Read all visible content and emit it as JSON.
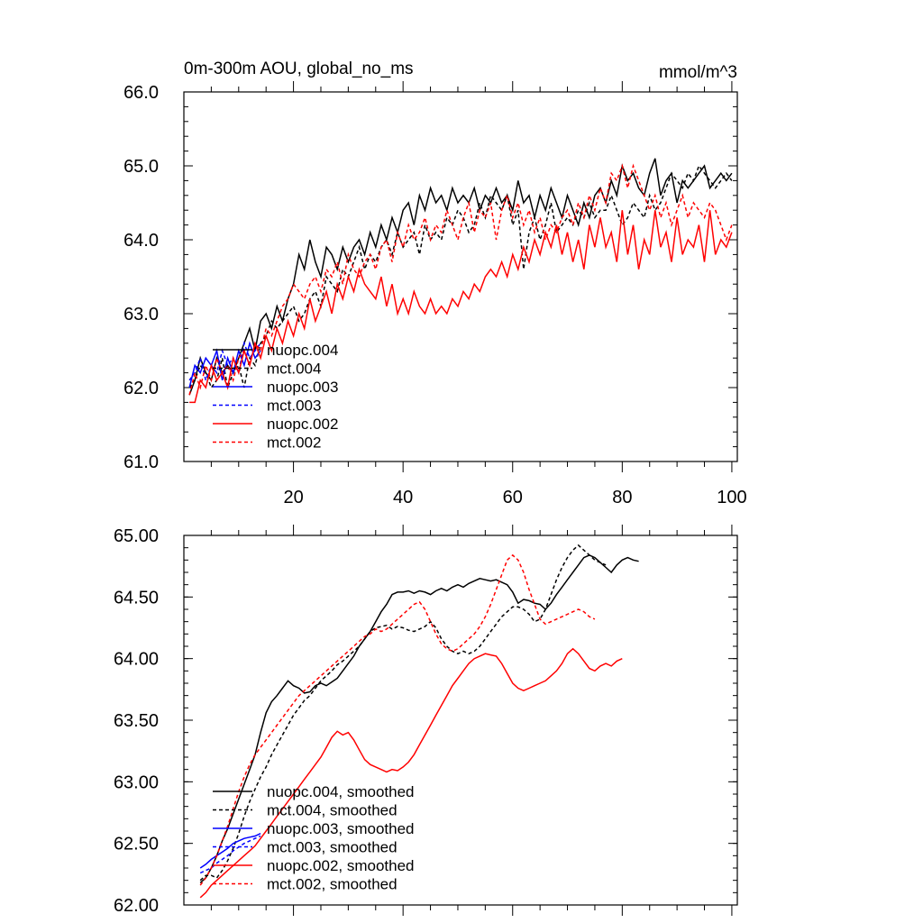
{
  "chart_data": [
    {
      "type": "line",
      "title": "0m-300m AOU, global_no_ms",
      "units": "mmol/m^3",
      "xlim": [
        0,
        101
      ],
      "ylim": [
        61.0,
        66.0
      ],
      "xticks": [
        20,
        40,
        60,
        80,
        100
      ],
      "xtick_labels": [
        "20",
        "40",
        "60",
        "80",
        "100"
      ],
      "yticks": [
        61,
        62,
        63,
        64,
        65,
        66
      ],
      "ytick_labels": [
        "61.0",
        "62.0",
        "63.0",
        "64.0",
        "65.0",
        "66.0"
      ],
      "legend": "bottom-left",
      "series": [
        {
          "name": "nuopc.004",
          "color": "#000000",
          "dash": "solid",
          "x_start": 1,
          "values": [
            61.9,
            62.1,
            62.4,
            62.2,
            62.1,
            62.4,
            62.2,
            62.3,
            62.2,
            62.4,
            62.6,
            62.8,
            62.5,
            62.9,
            63.0,
            62.8,
            63.1,
            62.9,
            63.2,
            63.4,
            63.8,
            63.6,
            64.0,
            63.7,
            63.5,
            63.9,
            63.8,
            63.6,
            63.9,
            63.7,
            63.9,
            64.0,
            63.8,
            64.1,
            63.9,
            64.2,
            64.0,
            64.3,
            64.1,
            64.4,
            64.5,
            64.2,
            64.6,
            64.4,
            64.7,
            64.5,
            64.6,
            64.4,
            64.7,
            64.5,
            64.6,
            64.5,
            64.7,
            64.4,
            64.6,
            64.5,
            64.7,
            64.5,
            64.6,
            64.4,
            64.8,
            64.5,
            64.6,
            64.3,
            64.6,
            64.4,
            64.7,
            64.5,
            64.3,
            64.6,
            64.4,
            64.2,
            64.5,
            64.3,
            64.6,
            64.7,
            64.5,
            64.8,
            64.6,
            65.0,
            64.8,
            64.9,
            64.7,
            64.6,
            64.9,
            65.1,
            64.6,
            64.8,
            64.9,
            64.5,
            64.8,
            64.7,
            64.8,
            64.9,
            65.0,
            64.7,
            64.8,
            64.9,
            64.8,
            64.9
          ]
        },
        {
          "name": "mct.004",
          "color": "#000000",
          "dash": "dashed",
          "x_start": 1,
          "values": [
            62.0,
            62.1,
            62.3,
            62.2,
            62.0,
            62.1,
            62.4,
            62.0,
            62.2,
            62.3,
            62.0,
            62.4,
            62.3,
            62.6,
            62.7,
            62.9,
            62.8,
            62.9,
            63.0,
            63.1,
            62.9,
            63.0,
            63.2,
            63.3,
            63.1,
            63.5,
            63.4,
            63.3,
            63.6,
            63.5,
            63.7,
            63.9,
            63.6,
            63.8,
            63.7,
            63.9,
            64.0,
            63.8,
            64.1,
            63.9,
            64.0,
            64.1,
            63.8,
            64.2,
            64.0,
            64.1,
            64.0,
            64.3,
            64.2,
            64.4,
            64.3,
            64.1,
            64.2,
            64.5,
            64.3,
            64.6,
            64.5,
            64.4,
            64.6,
            64.2,
            64.4,
            63.6,
            64.1,
            64.3,
            64.0,
            64.2,
            64.5,
            64.1,
            64.2,
            64.3,
            64.2,
            64.4,
            64.3,
            64.5,
            64.3,
            64.4,
            64.4,
            64.6,
            64.4,
            64.2,
            64.3,
            64.5,
            64.4,
            64.3,
            64.6,
            64.4,
            64.5,
            64.7,
            64.9,
            64.8,
            64.7,
            64.9,
            64.8,
            65.0,
            64.9,
            64.8,
            64.7,
            64.8,
            64.9,
            64.8
          ]
        },
        {
          "name": "nuopc.003",
          "color": "#0000ff",
          "dash": "solid",
          "x_start": 1,
          "values": [
            62.0,
            62.3,
            62.2,
            62.4,
            62.3,
            62.5,
            62.1,
            62.4,
            62.2,
            62.5,
            62.3,
            62.6,
            62.4,
            62.5
          ]
        },
        {
          "name": "mct.003",
          "color": "#0000ff",
          "dash": "dashed",
          "x_start": 1,
          "values": [
            62.1,
            62.2,
            62.4,
            62.1,
            62.3,
            62.2,
            62.5,
            62.3,
            62.4,
            62.2,
            62.6,
            62.4,
            62.5,
            62.6
          ]
        },
        {
          "name": "nuopc.002",
          "color": "#ff0000",
          "dash": "solid",
          "x_start": 1,
          "values": [
            61.8,
            61.8,
            62.1,
            62.0,
            62.3,
            62.1,
            62.2,
            62.0,
            62.4,
            62.2,
            62.5,
            62.3,
            62.6,
            62.4,
            62.7,
            62.5,
            62.8,
            62.6,
            62.9,
            62.7,
            63.0,
            62.8,
            63.2,
            62.9,
            63.1,
            63.3,
            63.0,
            63.4,
            63.2,
            63.5,
            63.3,
            63.6,
            63.4,
            63.3,
            63.2,
            63.5,
            63.1,
            63.4,
            63.0,
            63.2,
            63.0,
            63.3,
            63.1,
            63.0,
            63.2,
            63.0,
            63.1,
            63.0,
            63.2,
            63.1,
            63.3,
            63.2,
            63.4,
            63.3,
            63.5,
            63.6,
            63.5,
            63.7,
            63.5,
            63.8,
            63.6,
            63.9,
            63.7,
            64.0,
            63.8,
            64.1,
            63.9,
            64.2,
            63.8,
            64.1,
            63.7,
            64.0,
            63.6,
            64.2,
            63.9,
            64.3,
            63.9,
            64.1,
            63.7,
            64.4,
            63.8,
            64.2,
            63.6,
            64.0,
            63.8,
            64.4,
            63.9,
            64.1,
            63.7,
            64.3,
            63.8,
            64.0,
            63.9,
            64.2,
            63.7,
            64.4,
            63.8,
            64.0,
            63.9,
            64.1
          ]
        },
        {
          "name": "mct.002",
          "color": "#ff0000",
          "dash": "dashed",
          "x_start": 1,
          "values": [
            61.9,
            62.2,
            62.0,
            62.3,
            62.1,
            62.4,
            62.2,
            62.3,
            62.1,
            62.4,
            62.5,
            62.3,
            62.6,
            62.5,
            62.8,
            62.7,
            62.9,
            63.1,
            63.2,
            63.4,
            63.3,
            63.2,
            63.4,
            63.5,
            63.3,
            63.6,
            63.5,
            63.7,
            63.4,
            63.8,
            63.6,
            63.5,
            63.7,
            63.8,
            63.6,
            63.9,
            64.0,
            63.7,
            64.1,
            63.9,
            64.2,
            64.0,
            64.1,
            64.3,
            64.0,
            64.2,
            64.1,
            64.4,
            64.2,
            64.0,
            64.3,
            64.5,
            64.1,
            64.4,
            64.3,
            64.5,
            64.0,
            64.4,
            64.6,
            64.3,
            64.5,
            64.2,
            64.4,
            64.1,
            64.3,
            64.0,
            64.2,
            64.1,
            64.3,
            64.4,
            64.2,
            64.5,
            64.3,
            64.6,
            64.4,
            64.7,
            64.5,
            64.9,
            64.8,
            65.0,
            64.7,
            65.0,
            64.8,
            64.6,
            64.4,
            64.6,
            64.3,
            64.5,
            64.2,
            64.4,
            64.6,
            64.3,
            64.5,
            64.4,
            64.3,
            64.5,
            64.4,
            64.2,
            64.0,
            64.2
          ]
        }
      ],
      "legend_entries": [
        "nuopc.004",
        "mct.004",
        "nuopc.003",
        "mct.003",
        "nuopc.002",
        "mct.002"
      ]
    },
    {
      "type": "line",
      "title": "",
      "xlim": [
        0,
        101
      ],
      "ylim": [
        62.0,
        65.0
      ],
      "yticks": [
        62.0,
        62.5,
        63.0,
        63.5,
        64.0,
        64.5,
        65.0
      ],
      "ytick_labels": [
        "62.00",
        "62.50",
        "63.00",
        "63.50",
        "64.00",
        "64.50",
        "65.00"
      ],
      "legend": "bottom-left",
      "series": [
        {
          "name": "nuopc.004, smoothed",
          "color": "#000000",
          "dash": "solid",
          "x_start": 3,
          "values": [
            62.18,
            62.22,
            62.3,
            62.4,
            62.52,
            62.62,
            62.74,
            62.86,
            62.98,
            63.1,
            63.22,
            63.4,
            63.56,
            63.65,
            63.7,
            63.76,
            63.82,
            63.78,
            63.76,
            63.72,
            63.73,
            63.78,
            63.8,
            63.78,
            63.81,
            63.84,
            63.9,
            63.96,
            64.02,
            64.1,
            64.16,
            64.22,
            64.3,
            64.38,
            64.44,
            64.52,
            64.54,
            64.54,
            64.55,
            64.53,
            64.55,
            64.54,
            64.52,
            64.55,
            64.57,
            64.55,
            64.58,
            64.6,
            64.58,
            64.61,
            64.63,
            64.65,
            64.64,
            64.63,
            64.64,
            64.62,
            64.6,
            64.54,
            64.45,
            64.48,
            64.47,
            64.45,
            64.44,
            64.4,
            64.45,
            64.52,
            64.58,
            64.64,
            64.7,
            64.76,
            64.82,
            64.84,
            64.82,
            64.78,
            64.74,
            64.7,
            64.76,
            64.8,
            64.82,
            64.8,
            64.79
          ]
        },
        {
          "name": "mct.004, smoothed",
          "color": "#000000",
          "dash": "dashed",
          "x_start": 3,
          "values": [
            62.2,
            62.24,
            62.24,
            62.22,
            62.28,
            62.36,
            62.46,
            62.58,
            62.72,
            62.84,
            62.94,
            63.04,
            63.12,
            63.22,
            63.3,
            63.38,
            63.46,
            63.54,
            63.6,
            63.66,
            63.7,
            63.76,
            63.82,
            63.86,
            63.9,
            63.95,
            63.98,
            64.02,
            64.06,
            64.1,
            64.16,
            64.22,
            64.25,
            64.26,
            64.27,
            64.24,
            64.26,
            64.25,
            64.23,
            64.22,
            64.24,
            64.26,
            64.3,
            64.25,
            64.16,
            64.1,
            64.06,
            64.04,
            64.06,
            64.04,
            64.06,
            64.1,
            64.16,
            64.22,
            64.28,
            64.34,
            64.38,
            64.42,
            64.42,
            64.4,
            64.36,
            64.3,
            64.32,
            64.4,
            64.52,
            64.64,
            64.74,
            64.82,
            64.88,
            64.92,
            64.88,
            64.84,
            64.8,
            64.78,
            64.76
          ]
        },
        {
          "name": "nuopc.003, smoothed",
          "color": "#0000ff",
          "dash": "solid",
          "x_start": 3,
          "values": [
            62.3,
            62.33,
            62.37,
            62.4,
            62.43,
            62.46,
            62.5,
            62.52,
            62.54,
            62.55,
            62.56,
            62.58
          ]
        },
        {
          "name": "mct.003, smoothed",
          "color": "#0000ff",
          "dash": "dashed",
          "x_start": 3,
          "values": [
            62.26,
            62.28,
            62.3,
            62.34,
            62.37,
            62.4,
            62.44,
            62.47,
            62.5,
            62.52,
            62.54,
            62.56
          ]
        },
        {
          "name": "nuopc.002, smoothed",
          "color": "#ff0000",
          "dash": "solid",
          "x_start": 3,
          "values": [
            62.06,
            62.1,
            62.16,
            62.2,
            62.24,
            62.28,
            62.32,
            62.36,
            62.4,
            62.44,
            62.48,
            62.54,
            62.6,
            62.66,
            62.72,
            62.78,
            62.84,
            62.9,
            62.96,
            63.02,
            63.08,
            63.14,
            63.2,
            63.28,
            63.36,
            63.41,
            63.38,
            63.4,
            63.34,
            63.26,
            63.18,
            63.14,
            63.12,
            63.1,
            63.08,
            63.1,
            63.09,
            63.12,
            63.16,
            63.22,
            63.3,
            63.38,
            63.46,
            63.54,
            63.62,
            63.7,
            63.78,
            63.84,
            63.9,
            63.96,
            64.0,
            64.02,
            64.04,
            64.03,
            64.02,
            63.96,
            63.88,
            63.8,
            63.76,
            63.74,
            63.76,
            63.78,
            63.8,
            63.82,
            63.86,
            63.9,
            63.96,
            64.04,
            64.08,
            64.04,
            63.98,
            63.92,
            63.9,
            63.94,
            63.96,
            63.94,
            63.98,
            64.0
          ]
        },
        {
          "name": "mct.002, smoothed",
          "color": "#ff0000",
          "dash": "dashed",
          "x_start": 3,
          "values": [
            62.16,
            62.22,
            62.3,
            62.4,
            62.52,
            62.64,
            62.78,
            62.92,
            63.04,
            63.14,
            63.22,
            63.28,
            63.34,
            63.4,
            63.46,
            63.52,
            63.58,
            63.64,
            63.7,
            63.74,
            63.78,
            63.82,
            63.86,
            63.9,
            63.94,
            63.98,
            64.02,
            64.06,
            64.1,
            64.14,
            64.18,
            64.2,
            64.24,
            64.22,
            64.24,
            64.28,
            64.32,
            64.36,
            64.4,
            64.44,
            64.46,
            64.4,
            64.3,
            64.2,
            64.12,
            64.08,
            64.06,
            64.08,
            64.12,
            64.16,
            64.2,
            64.26,
            64.34,
            64.44,
            64.56,
            64.68,
            64.8,
            64.84,
            64.8,
            64.7,
            64.56,
            64.44,
            64.32,
            64.28,
            64.3,
            64.32,
            64.34,
            64.36,
            64.38,
            64.4,
            64.38,
            64.34,
            64.32
          ]
        }
      ],
      "legend_entries": [
        "nuopc.004, smoothed",
        "mct.004, smoothed",
        "nuopc.003, smoothed",
        "mct.003, smoothed",
        "nuopc.002, smoothed",
        "mct.002, smoothed"
      ]
    }
  ]
}
